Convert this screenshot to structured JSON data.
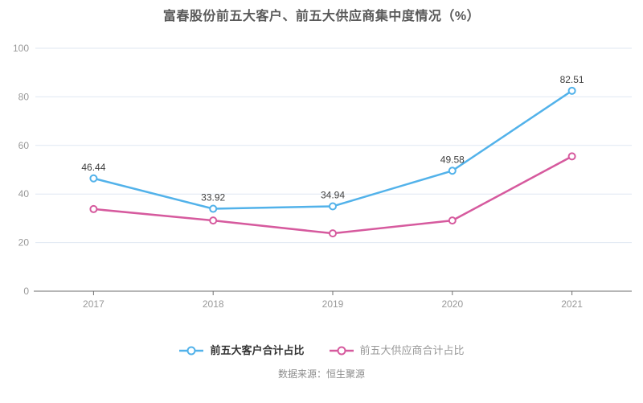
{
  "title": "富春股份前五大客户、前五大供应商集中度情况（%）",
  "source": "数据来源：恒生聚源",
  "colors": {
    "customer_line": "#52b2ea",
    "supplier_line": "#d65a9e",
    "grid": "#dfe7f2",
    "axis_line": "#6e6e6e",
    "axis_label": "#999999",
    "title_color": "#595959",
    "data_label": "#404040",
    "background": "#ffffff"
  },
  "legend": [
    {
      "label": "前五大客户合计占比",
      "color": "#52b2ea",
      "text_color": "#333333",
      "bold": true
    },
    {
      "label": "前五大供应商合计占比",
      "color": "#d65a9e",
      "text_color": "#999999",
      "bold": false
    }
  ],
  "chart_data": {
    "type": "line",
    "title": "富春股份前五大客户、前五大供应商集中度情况（%）",
    "categories": [
      "2017",
      "2018",
      "2019",
      "2020",
      "2021"
    ],
    "series": [
      {
        "name": "前五大客户合计占比",
        "color": "#52b2ea",
        "values": [
          46.44,
          33.92,
          34.94,
          49.58,
          82.51
        ],
        "labels_visible": true,
        "marker": "hollow-circle"
      },
      {
        "name": "前五大供应商合计占比",
        "color": "#d65a9e",
        "values": [
          33.8,
          29.1,
          23.8,
          29.1,
          55.5
        ],
        "labels_visible": false,
        "marker": "hollow-circle"
      }
    ],
    "xlabel": "",
    "ylabel": "",
    "ylim": [
      0,
      100
    ],
    "yticks": [
      0,
      20,
      40,
      60,
      80,
      100
    ],
    "grid": true,
    "legend_position": "bottom"
  }
}
